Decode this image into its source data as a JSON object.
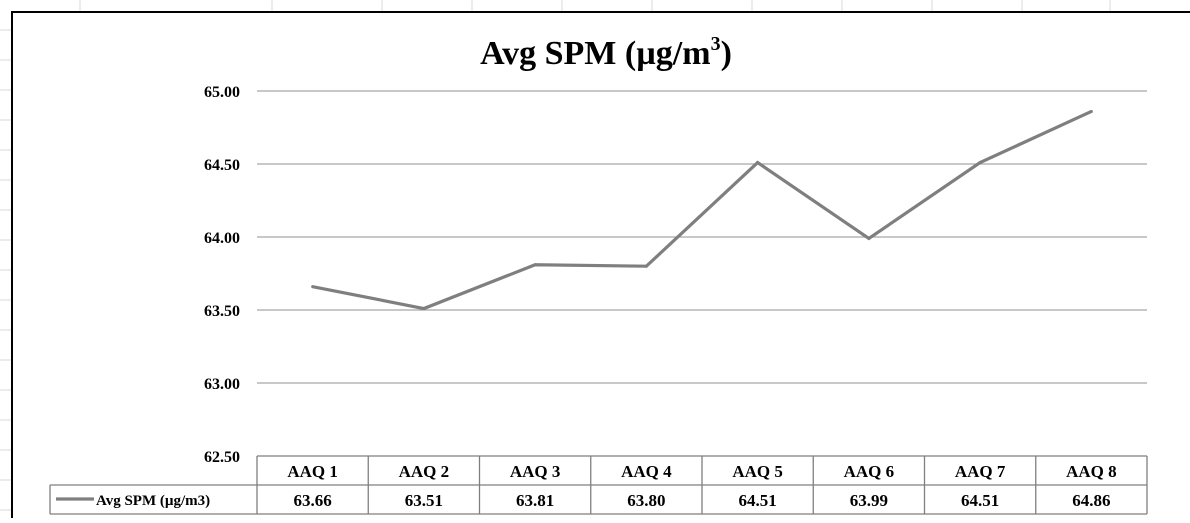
{
  "chart_data": {
    "type": "line",
    "title": "Avg SPM (µg/m",
    "title_superscript": "3",
    "title_close": ")",
    "categories": [
      "AAQ 1",
      "AAQ 2",
      "AAQ 3",
      "AAQ 4",
      "AAQ 5",
      "AAQ 6",
      "AAQ 7",
      "AAQ 8"
    ],
    "series": [
      {
        "name": "Avg SPM (µg/m3)",
        "values": [
          63.66,
          63.51,
          63.81,
          63.8,
          64.51,
          63.99,
          64.51,
          64.86
        ],
        "value_labels": [
          "63.66",
          "63.51",
          "63.81",
          "63.80",
          "64.51",
          "63.99",
          "64.51",
          "64.86"
        ],
        "color": "#7f7f7f"
      }
    ],
    "yticks": [
      "65.00",
      "64.50",
      "64.00",
      "63.50",
      "63.00",
      "62.50"
    ],
    "ylim": [
      62.5,
      65.0
    ],
    "grid": true,
    "data_table": true,
    "colors": {
      "grid": "#a6a6a6",
      "frame": "#000000"
    }
  }
}
